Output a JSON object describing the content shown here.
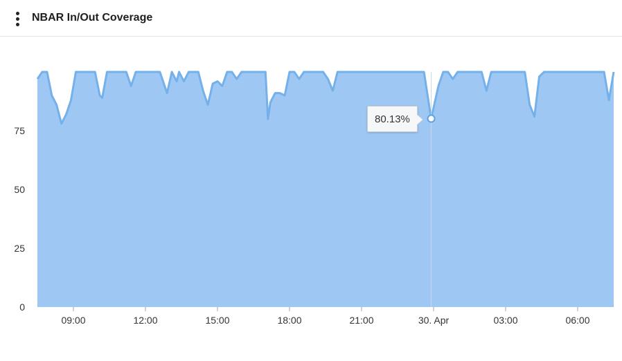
{
  "header": {
    "title": "NBAR In/Out Coverage",
    "menu_icon": "more-vertical-icon"
  },
  "tooltip": {
    "value_label": "80.13%"
  },
  "colors": {
    "area_fill": "#9ec8f3",
    "line": "#74b0ea",
    "crosshair": "#c8d6e6",
    "marker_fill": "#ffffff",
    "marker_stroke": "#5fa2e4"
  },
  "chart_data": {
    "type": "area",
    "title": "NBAR In/Out Coverage",
    "xlabel": "",
    "ylabel": "",
    "y_ticks": [
      "0",
      "25",
      "50",
      "75"
    ],
    "x_ticks": [
      "09:00",
      "12:00",
      "15:00",
      "18:00",
      "21:00",
      "30. Apr",
      "03:00",
      "06:00"
    ],
    "x_tick_hours": [
      9,
      12,
      15,
      18,
      21,
      24,
      27,
      30
    ],
    "xlim_hours": [
      7.5,
      31.5
    ],
    "ylim": [
      0,
      100
    ],
    "grid": false,
    "legend": "none",
    "tooltip_point": {
      "x_hours": 23.9,
      "value": 80.13
    },
    "series": [
      {
        "values": [
          [
            7.5,
            97
          ],
          [
            7.7,
            100
          ],
          [
            7.9,
            100
          ],
          [
            8.1,
            90
          ],
          [
            8.3,
            86
          ],
          [
            8.5,
            78
          ],
          [
            8.7,
            82
          ],
          [
            8.9,
            88
          ],
          [
            9.1,
            100
          ],
          [
            9.3,
            100
          ],
          [
            9.6,
            100
          ],
          [
            9.9,
            100
          ],
          [
            10.1,
            90
          ],
          [
            10.2,
            89
          ],
          [
            10.4,
            100
          ],
          [
            10.7,
            100
          ],
          [
            11.0,
            100
          ],
          [
            11.2,
            100
          ],
          [
            11.4,
            94
          ],
          [
            11.6,
            100
          ],
          [
            11.8,
            100
          ],
          [
            12.0,
            100
          ],
          [
            12.2,
            100
          ],
          [
            12.4,
            100
          ],
          [
            12.6,
            100
          ],
          [
            12.9,
            91
          ],
          [
            13.1,
            100
          ],
          [
            13.3,
            96
          ],
          [
            13.4,
            100
          ],
          [
            13.6,
            96
          ],
          [
            13.8,
            100
          ],
          [
            14.0,
            100
          ],
          [
            14.2,
            100
          ],
          [
            14.4,
            92
          ],
          [
            14.6,
            86
          ],
          [
            14.8,
            95
          ],
          [
            15.0,
            96
          ],
          [
            15.2,
            94
          ],
          [
            15.4,
            100
          ],
          [
            15.6,
            100
          ],
          [
            15.8,
            97
          ],
          [
            16.0,
            100
          ],
          [
            16.2,
            100
          ],
          [
            16.4,
            100
          ],
          [
            16.6,
            100
          ],
          [
            16.8,
            100
          ],
          [
            17.0,
            100
          ],
          [
            17.1,
            80
          ],
          [
            17.2,
            87
          ],
          [
            17.4,
            91
          ],
          [
            17.6,
            91
          ],
          [
            17.8,
            90
          ],
          [
            18.0,
            100
          ],
          [
            18.2,
            100
          ],
          [
            18.4,
            97
          ],
          [
            18.6,
            100
          ],
          [
            18.8,
            100
          ],
          [
            19.0,
            100
          ],
          [
            19.2,
            100
          ],
          [
            19.4,
            100
          ],
          [
            19.6,
            97
          ],
          [
            19.8,
            92
          ],
          [
            20.0,
            100
          ],
          [
            20.2,
            100
          ],
          [
            20.4,
            100
          ],
          [
            20.6,
            100
          ],
          [
            20.8,
            100
          ],
          [
            21.0,
            100
          ],
          [
            21.2,
            100
          ],
          [
            21.4,
            100
          ],
          [
            21.6,
            100
          ],
          [
            21.8,
            100
          ],
          [
            22.0,
            100
          ],
          [
            22.2,
            100
          ],
          [
            22.4,
            100
          ],
          [
            22.6,
            100
          ],
          [
            22.8,
            100
          ],
          [
            23.0,
            100
          ],
          [
            23.2,
            100
          ],
          [
            23.4,
            100
          ],
          [
            23.6,
            100
          ],
          [
            23.9,
            80.13
          ],
          [
            24.2,
            94
          ],
          [
            24.4,
            100
          ],
          [
            24.6,
            100
          ],
          [
            24.8,
            97
          ],
          [
            25.0,
            100
          ],
          [
            25.3,
            100
          ],
          [
            25.6,
            100
          ],
          [
            25.8,
            100
          ],
          [
            26.0,
            100
          ],
          [
            26.2,
            92
          ],
          [
            26.4,
            100
          ],
          [
            26.6,
            100
          ],
          [
            26.8,
            100
          ],
          [
            27.0,
            100
          ],
          [
            27.2,
            100
          ],
          [
            27.4,
            100
          ],
          [
            27.6,
            100
          ],
          [
            27.8,
            100
          ],
          [
            28.0,
            86
          ],
          [
            28.2,
            81
          ],
          [
            28.4,
            98
          ],
          [
            28.6,
            100
          ],
          [
            28.8,
            100
          ],
          [
            29.0,
            100
          ],
          [
            29.2,
            100
          ],
          [
            29.5,
            100
          ],
          [
            29.7,
            100
          ],
          [
            29.9,
            100
          ],
          [
            30.1,
            100
          ],
          [
            30.3,
            100
          ],
          [
            30.5,
            100
          ],
          [
            30.7,
            100
          ],
          [
            30.9,
            100
          ],
          [
            31.1,
            100
          ],
          [
            31.3,
            88
          ],
          [
            31.5,
            100
          ]
        ]
      }
    ]
  }
}
